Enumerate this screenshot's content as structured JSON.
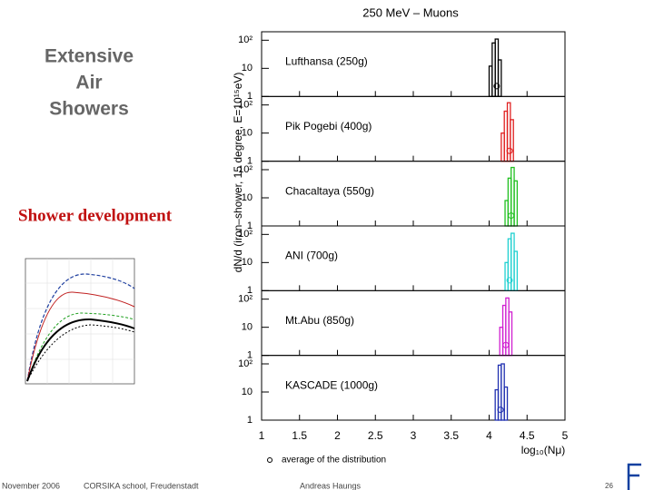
{
  "slide": {
    "title_lines": [
      "Extensive",
      "Air",
      "Showers"
    ],
    "subtitle": "Shower development",
    "footer": [
      "November 2006",
      "CORSIKA school, Freudenstadt",
      "Andreas Haungs"
    ],
    "page": "26"
  },
  "chart_data": [
    {
      "type": "histogram",
      "title": "250 MeV – Muons",
      "ylabel": "dN/d (iron–shower, 15 degree, E=10¹⁵eV)",
      "label": "Lufthansa (250g)",
      "color": "#000000",
      "bins": [
        4.0,
        4.04,
        4.08,
        4.12,
        4.16
      ],
      "values": [
        12,
        80,
        110,
        20
      ],
      "average": 4.1,
      "xlim": [
        1,
        5
      ],
      "ylim": [
        1,
        200
      ],
      "log_y": true,
      "yticks": [
        1,
        10,
        {
          "value": 100,
          "label": "10²"
        }
      ]
    },
    {
      "type": "histogram",
      "label": "Pik Pogebi (400g)",
      "color": "#e02020",
      "bins": [
        4.16,
        4.2,
        4.24,
        4.28,
        4.32
      ],
      "values": [
        10,
        60,
        120,
        30
      ],
      "average": 4.27,
      "xlim": [
        1,
        5
      ],
      "ylim": [
        1,
        200
      ],
      "log_y": true,
      "yticks": [
        1,
        10,
        {
          "value": 100,
          "label": "10²"
        }
      ]
    },
    {
      "type": "histogram",
      "label": "Chacaltaya (550g)",
      "color": "#20c020",
      "bins": [
        4.21,
        4.25,
        4.29,
        4.33,
        4.37
      ],
      "values": [
        8,
        50,
        120,
        40
      ],
      "average": 4.29,
      "xlim": [
        1,
        5
      ],
      "ylim": [
        1,
        200
      ],
      "log_y": true,
      "yticks": [
        1,
        10,
        {
          "value": 100,
          "label": "10²"
        }
      ]
    },
    {
      "type": "histogram",
      "label": "ANI (700g)",
      "color": "#20d0d0",
      "bins": [
        4.21,
        4.25,
        4.29,
        4.33,
        4.37
      ],
      "values": [
        10,
        70,
        110,
        25
      ],
      "average": 4.27,
      "xlim": [
        1,
        5
      ],
      "ylim": [
        1,
        200
      ],
      "log_y": true,
      "yticks": [
        1,
        10,
        {
          "value": 100,
          "label": "10²"
        }
      ]
    },
    {
      "type": "histogram",
      "label": "Mt.Abu (850g)",
      "color": "#d020d0",
      "bins": [
        4.14,
        4.18,
        4.22,
        4.26,
        4.3
      ],
      "values": [
        10,
        60,
        110,
        35
      ],
      "average": 4.22,
      "xlim": [
        1,
        5
      ],
      "ylim": [
        1,
        200
      ],
      "log_y": true,
      "yticks": [
        1,
        10,
        {
          "value": 100,
          "label": "10²"
        }
      ]
    },
    {
      "type": "histogram",
      "label": "KASCADE (1000g)",
      "color": "#2030b0",
      "bins": [
        4.08,
        4.12,
        4.16,
        4.2,
        4.24
      ],
      "values": [
        12,
        90,
        100,
        15
      ],
      "average": 4.15,
      "xlim": [
        1,
        5
      ],
      "ylim": [
        1,
        200
      ],
      "log_y": true,
      "yticks": [
        1,
        10,
        {
          "value": 100,
          "label": "10²"
        }
      ],
      "xticks": [
        1,
        1.5,
        2,
        2.5,
        3,
        3.5,
        4,
        4.5,
        5
      ],
      "xlabel": "log₁₀(Nμ)",
      "marker_label": "average of the distribution"
    }
  ]
}
